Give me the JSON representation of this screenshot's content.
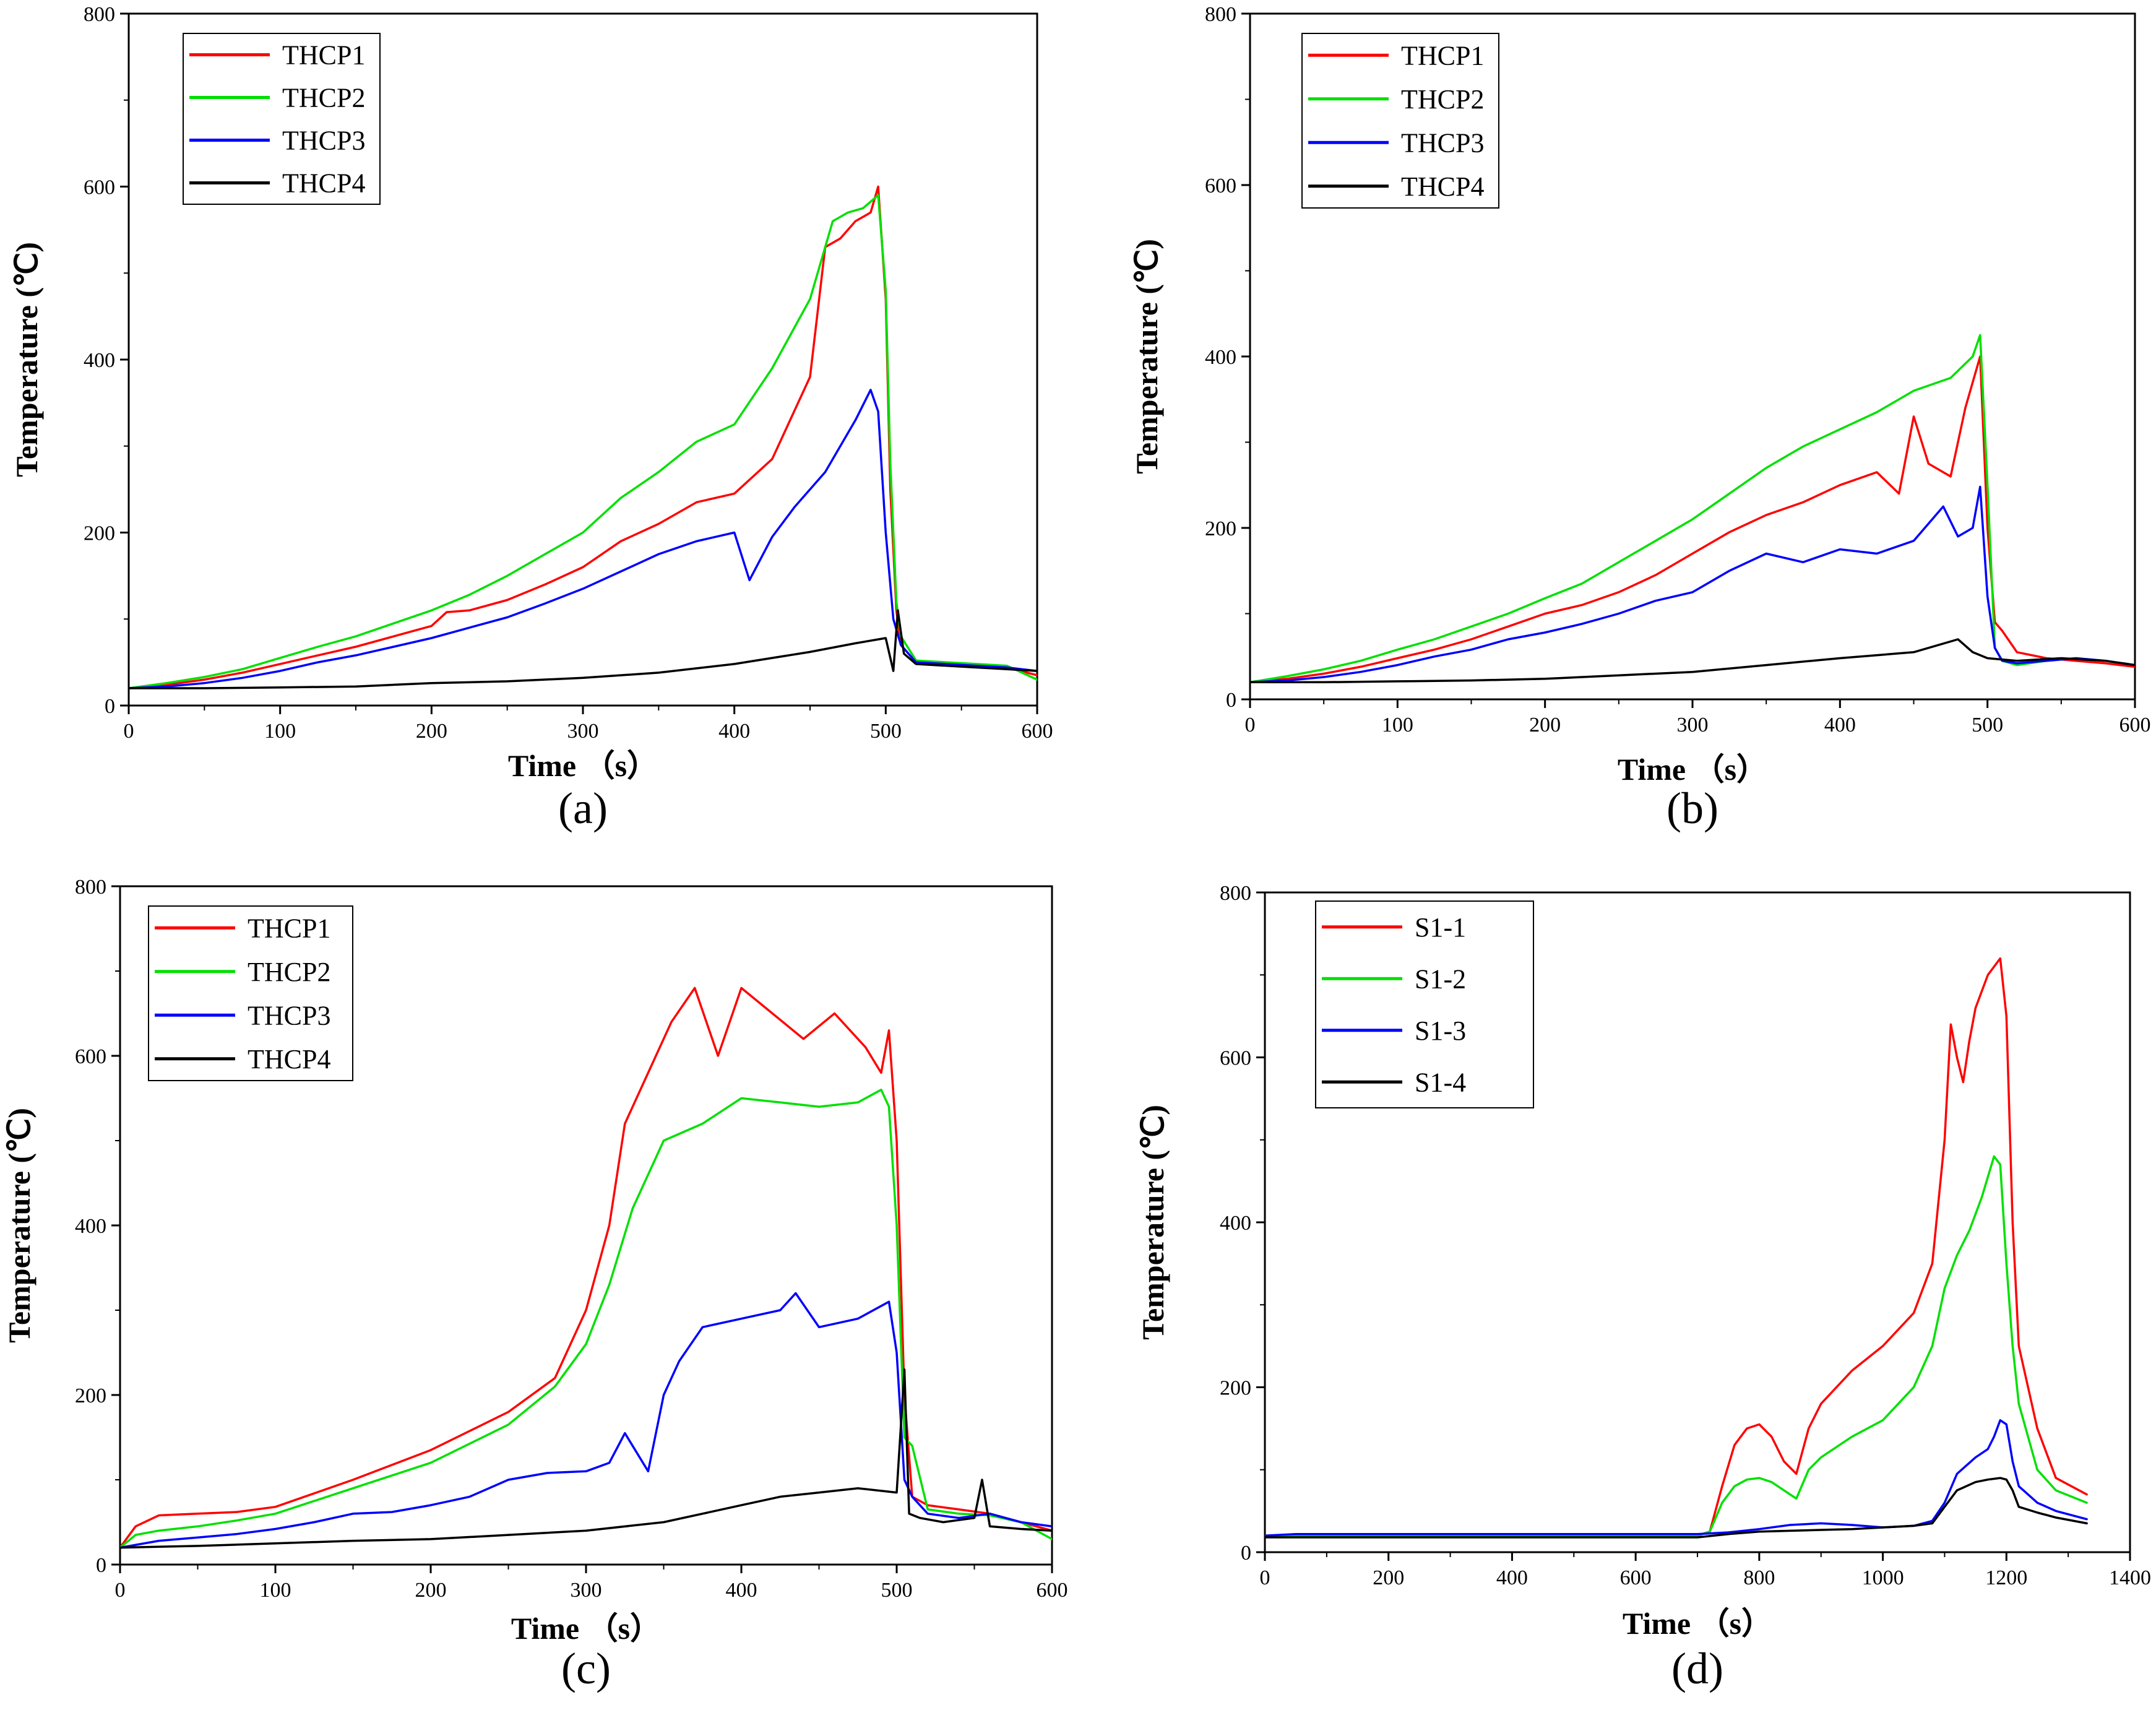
{
  "chart_data": [
    {
      "id": "a",
      "type": "line",
      "panel_label": "(a)",
      "xlabel": "Time （s）",
      "ylabel": "Temperature (℃)",
      "xlim": [
        0,
        600
      ],
      "ylim": [
        0,
        800
      ],
      "xticks": [
        0,
        100,
        200,
        300,
        400,
        500,
        600
      ],
      "yticks": [
        0,
        200,
        400,
        600,
        800
      ],
      "legend": "top-left",
      "series": [
        {
          "name": "THCP1",
          "color": "#ff0000",
          "x": [
            0,
            25,
            50,
            75,
            100,
            125,
            150,
            175,
            200,
            210,
            225,
            250,
            275,
            300,
            325,
            350,
            375,
            400,
            425,
            450,
            460,
            470,
            480,
            490,
            495,
            500,
            503,
            507,
            510,
            520,
            540,
            560,
            580,
            600
          ],
          "y": [
            20,
            24,
            30,
            38,
            48,
            58,
            68,
            80,
            92,
            108,
            110,
            122,
            140,
            160,
            190,
            210,
            235,
            245,
            285,
            380,
            530,
            540,
            560,
            570,
            600,
            470,
            250,
            110,
            70,
            50,
            48,
            46,
            44,
            35
          ]
        },
        {
          "name": "THCP2",
          "color": "#00e000",
          "x": [
            0,
            25,
            50,
            75,
            100,
            125,
            150,
            175,
            200,
            225,
            250,
            275,
            300,
            325,
            350,
            375,
            400,
            425,
            450,
            465,
            475,
            485,
            495,
            500,
            503,
            507,
            510,
            520,
            540,
            560,
            580,
            600
          ],
          "y": [
            20,
            26,
            33,
            42,
            55,
            68,
            80,
            95,
            110,
            128,
            150,
            175,
            200,
            240,
            270,
            305,
            325,
            390,
            470,
            560,
            570,
            575,
            590,
            480,
            280,
            120,
            80,
            52,
            50,
            48,
            46,
            30
          ]
        },
        {
          "name": "THCP3",
          "color": "#0000ff",
          "x": [
            0,
            25,
            50,
            75,
            100,
            125,
            150,
            175,
            200,
            225,
            250,
            275,
            300,
            325,
            350,
            375,
            400,
            410,
            425,
            440,
            460,
            480,
            490,
            495,
            500,
            505,
            510,
            520,
            540,
            560,
            580,
            600
          ],
          "y": [
            20,
            22,
            26,
            32,
            40,
            50,
            58,
            68,
            78,
            90,
            102,
            118,
            135,
            155,
            175,
            190,
            200,
            145,
            195,
            230,
            270,
            330,
            365,
            340,
            200,
            100,
            70,
            50,
            48,
            46,
            44,
            40
          ]
        },
        {
          "name": "THCP4",
          "color": "#000000",
          "x": [
            0,
            50,
            100,
            150,
            200,
            250,
            300,
            350,
            400,
            450,
            480,
            500,
            505,
            508,
            512,
            520,
            550,
            580,
            600
          ],
          "y": [
            20,
            20,
            21,
            22,
            26,
            28,
            32,
            38,
            48,
            62,
            72,
            78,
            40,
            110,
            60,
            48,
            45,
            42,
            40
          ]
        }
      ]
    },
    {
      "id": "b",
      "type": "line",
      "panel_label": "(b)",
      "xlabel": "Time （s）",
      "ylabel": "Temperature (℃)",
      "xlim": [
        0,
        600
      ],
      "ylim": [
        0,
        800
      ],
      "xticks": [
        0,
        100,
        200,
        300,
        400,
        500,
        600
      ],
      "yticks": [
        0,
        200,
        400,
        600,
        800
      ],
      "legend": "top-left",
      "series": [
        {
          "name": "THCP1",
          "color": "#ff0000",
          "x": [
            0,
            25,
            50,
            75,
            100,
            125,
            150,
            175,
            200,
            225,
            250,
            275,
            300,
            325,
            350,
            375,
            400,
            425,
            440,
            450,
            460,
            475,
            485,
            495,
            500,
            505,
            510,
            520,
            540,
            560,
            580,
            600
          ],
          "y": [
            20,
            24,
            30,
            38,
            48,
            58,
            70,
            85,
            100,
            110,
            125,
            145,
            170,
            195,
            215,
            230,
            250,
            265,
            240,
            330,
            275,
            260,
            340,
            400,
            200,
            90,
            80,
            55,
            48,
            45,
            42,
            38
          ]
        },
        {
          "name": "THCP2",
          "color": "#00e000",
          "x": [
            0,
            25,
            50,
            75,
            100,
            125,
            150,
            175,
            200,
            225,
            250,
            275,
            300,
            325,
            350,
            375,
            400,
            425,
            450,
            475,
            490,
            495,
            500,
            505,
            510,
            520,
            540,
            560,
            580,
            600
          ],
          "y": [
            20,
            27,
            35,
            45,
            58,
            70,
            85,
            100,
            118,
            135,
            160,
            185,
            210,
            240,
            270,
            295,
            315,
            335,
            360,
            375,
            400,
            425,
            250,
            60,
            45,
            40,
            45,
            48,
            45,
            40
          ]
        },
        {
          "name": "THCP3",
          "color": "#0000ff",
          "x": [
            0,
            25,
            50,
            75,
            100,
            125,
            150,
            175,
            200,
            225,
            250,
            275,
            300,
            325,
            350,
            375,
            400,
            425,
            450,
            470,
            480,
            490,
            495,
            500,
            505,
            510,
            520,
            540,
            560,
            580,
            600
          ],
          "y": [
            20,
            22,
            26,
            32,
            40,
            50,
            58,
            70,
            78,
            88,
            100,
            115,
            125,
            150,
            170,
            160,
            175,
            170,
            185,
            225,
            190,
            200,
            248,
            120,
            60,
            45,
            42,
            45,
            48,
            45,
            40
          ]
        },
        {
          "name": "THCP4",
          "color": "#000000",
          "x": [
            0,
            50,
            100,
            150,
            200,
            250,
            300,
            350,
            400,
            450,
            480,
            490,
            500,
            520,
            550,
            580,
            600
          ],
          "y": [
            20,
            20,
            21,
            22,
            24,
            28,
            32,
            40,
            48,
            55,
            70,
            55,
            48,
            45,
            48,
            45,
            40
          ]
        }
      ]
    },
    {
      "id": "c",
      "type": "line",
      "panel_label": "(c)",
      "xlabel": "Time （s）",
      "ylabel": "Temperature (℃)",
      "xlim": [
        0,
        600
      ],
      "ylim": [
        0,
        800
      ],
      "xticks": [
        0,
        100,
        200,
        300,
        400,
        500,
        600
      ],
      "yticks": [
        0,
        200,
        400,
        600,
        800
      ],
      "legend": "top-left",
      "series": [
        {
          "name": "THCP1",
          "color": "#ff0000",
          "x": [
            0,
            10,
            25,
            50,
            75,
            100,
            150,
            200,
            250,
            280,
            300,
            315,
            325,
            340,
            355,
            370,
            385,
            400,
            420,
            440,
            460,
            480,
            490,
            495,
            500,
            505,
            510,
            520,
            540,
            560,
            580,
            600
          ],
          "y": [
            20,
            45,
            58,
            60,
            62,
            68,
            100,
            135,
            180,
            220,
            300,
            400,
            520,
            580,
            640,
            680,
            600,
            680,
            650,
            620,
            650,
            610,
            580,
            630,
            500,
            200,
            80,
            70,
            65,
            60,
            50,
            40
          ]
        },
        {
          "name": "THCP2",
          "color": "#00e000",
          "x": [
            0,
            10,
            25,
            50,
            75,
            100,
            150,
            200,
            250,
            280,
            300,
            315,
            330,
            350,
            375,
            400,
            425,
            450,
            475,
            490,
            495,
            500,
            505,
            510,
            520,
            540,
            560,
            580,
            600
          ],
          "y": [
            20,
            35,
            40,
            45,
            52,
            60,
            90,
            120,
            165,
            210,
            260,
            330,
            420,
            500,
            520,
            550,
            545,
            540,
            545,
            560,
            540,
            400,
            150,
            140,
            65,
            60,
            58,
            50,
            30
          ]
        },
        {
          "name": "THCP3",
          "color": "#0000ff",
          "x": [
            0,
            25,
            50,
            75,
            100,
            125,
            150,
            175,
            200,
            225,
            250,
            275,
            300,
            315,
            325,
            340,
            350,
            360,
            375,
            400,
            425,
            435,
            450,
            475,
            490,
            495,
            500,
            505,
            510,
            520,
            540,
            560,
            580,
            600
          ],
          "y": [
            20,
            28,
            32,
            36,
            42,
            50,
            60,
            62,
            70,
            80,
            100,
            108,
            110,
            120,
            155,
            110,
            200,
            240,
            280,
            290,
            300,
            320,
            280,
            290,
            305,
            310,
            250,
            100,
            80,
            60,
            55,
            60,
            50,
            45
          ]
        },
        {
          "name": "THCP4",
          "color": "#000000",
          "x": [
            0,
            50,
            100,
            150,
            200,
            250,
            300,
            350,
            375,
            400,
            425,
            450,
            475,
            500,
            505,
            508,
            515,
            530,
            550,
            555,
            560,
            580,
            600
          ],
          "y": [
            20,
            22,
            25,
            28,
            30,
            35,
            40,
            50,
            60,
            70,
            80,
            85,
            90,
            85,
            230,
            60,
            55,
            50,
            55,
            100,
            45,
            42,
            40
          ]
        }
      ]
    },
    {
      "id": "d",
      "type": "line",
      "panel_label": "(d)",
      "xlabel": "Time （s）",
      "ylabel": "Temperature (℃)",
      "xlim": [
        0,
        1400
      ],
      "ylim": [
        0,
        800
      ],
      "xticks": [
        0,
        200,
        400,
        600,
        800,
        1000,
        1200,
        1400
      ],
      "yticks": [
        0,
        200,
        400,
        600,
        800
      ],
      "legend": "top-left",
      "series": [
        {
          "name": "S1-1",
          "color": "#ff0000",
          "x": [
            0,
            700,
            720,
            740,
            760,
            780,
            800,
            820,
            840,
            860,
            880,
            900,
            950,
            1000,
            1050,
            1080,
            1100,
            1110,
            1120,
            1130,
            1140,
            1150,
            1170,
            1190,
            1200,
            1210,
            1220,
            1250,
            1280,
            1330
          ],
          "y": [
            20,
            20,
            25,
            80,
            130,
            150,
            155,
            140,
            110,
            95,
            150,
            180,
            220,
            250,
            290,
            350,
            500,
            640,
            600,
            570,
            620,
            660,
            700,
            720,
            650,
            400,
            250,
            150,
            90,
            70
          ]
        },
        {
          "name": "S1-2",
          "color": "#00e000",
          "x": [
            0,
            700,
            720,
            740,
            760,
            780,
            800,
            820,
            840,
            860,
            880,
            900,
            950,
            1000,
            1050,
            1080,
            1100,
            1120,
            1140,
            1160,
            1180,
            1190,
            1200,
            1210,
            1220,
            1250,
            1280,
            1330
          ],
          "y": [
            20,
            20,
            25,
            60,
            80,
            88,
            90,
            85,
            75,
            65,
            100,
            115,
            140,
            160,
            200,
            250,
            320,
            360,
            390,
            430,
            480,
            470,
            350,
            250,
            180,
            100,
            75,
            60
          ]
        },
        {
          "name": "S1-3",
          "color": "#0000ff",
          "x": [
            0,
            50,
            700,
            750,
            800,
            850,
            900,
            950,
            1000,
            1050,
            1080,
            1100,
            1120,
            1150,
            1170,
            1180,
            1190,
            1200,
            1210,
            1220,
            1250,
            1280,
            1330
          ],
          "y": [
            20,
            22,
            22,
            24,
            28,
            33,
            35,
            33,
            30,
            32,
            38,
            60,
            95,
            115,
            125,
            140,
            160,
            155,
            110,
            80,
            60,
            50,
            40
          ]
        },
        {
          "name": "S1-4",
          "color": "#000000",
          "x": [
            0,
            50,
            700,
            750,
            800,
            850,
            900,
            950,
            1000,
            1050,
            1080,
            1100,
            1120,
            1150,
            1170,
            1190,
            1200,
            1210,
            1220,
            1250,
            1280,
            1330
          ],
          "y": [
            18,
            18,
            18,
            22,
            25,
            26,
            27,
            28,
            30,
            32,
            35,
            55,
            75,
            85,
            88,
            90,
            88,
            75,
            55,
            48,
            42,
            35
          ]
        }
      ]
    }
  ]
}
